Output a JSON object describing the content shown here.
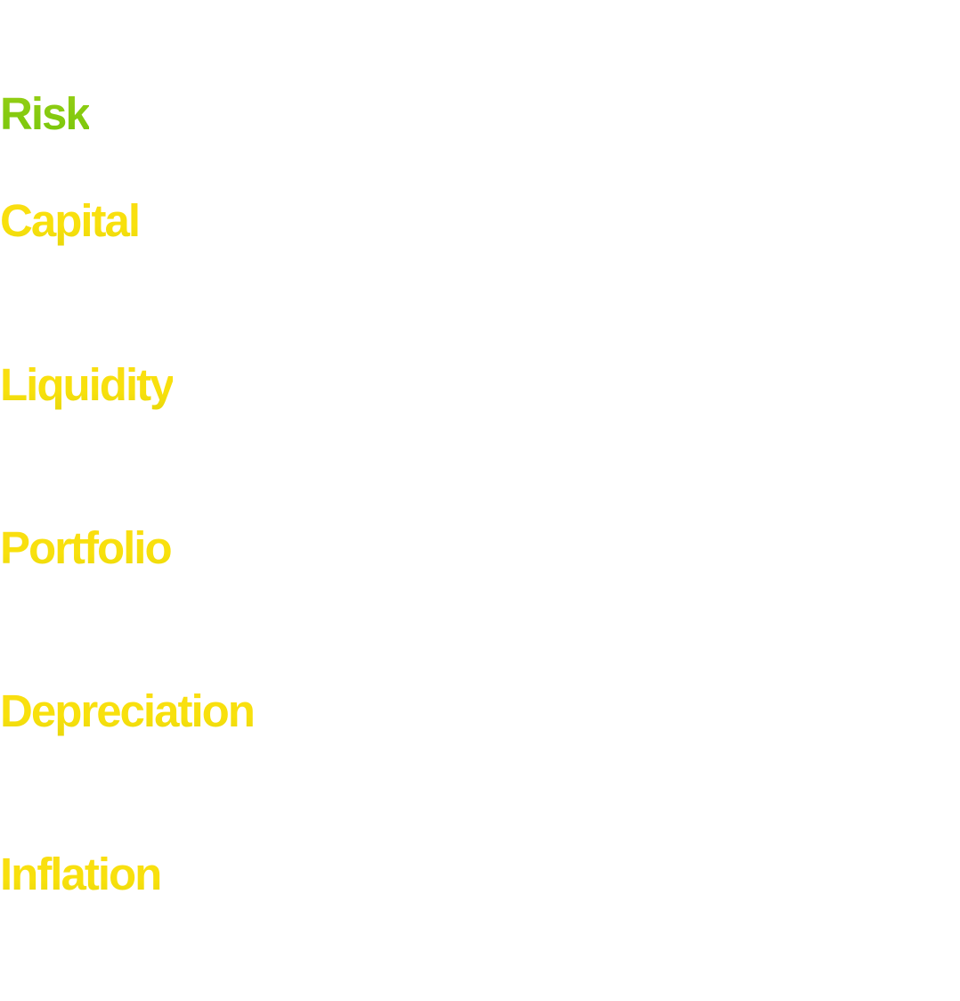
{
  "words": [
    {
      "text": "Risk",
      "color": "#84c90f"
    },
    {
      "text": "Capital",
      "color": "#f7dc0f"
    },
    {
      "text": "Liquidity",
      "color": "#f7dc0f"
    },
    {
      "text": "Portfolio",
      "color": "#f7dc0f"
    },
    {
      "text": "Depreciation",
      "color": "#f7dc0f"
    },
    {
      "text": "Inflation",
      "color": "#f7dc0f"
    }
  ],
  "colors": {
    "background": "#ffffff",
    "accent_green": "#84c90f",
    "yellow": "#f7dc0f"
  }
}
